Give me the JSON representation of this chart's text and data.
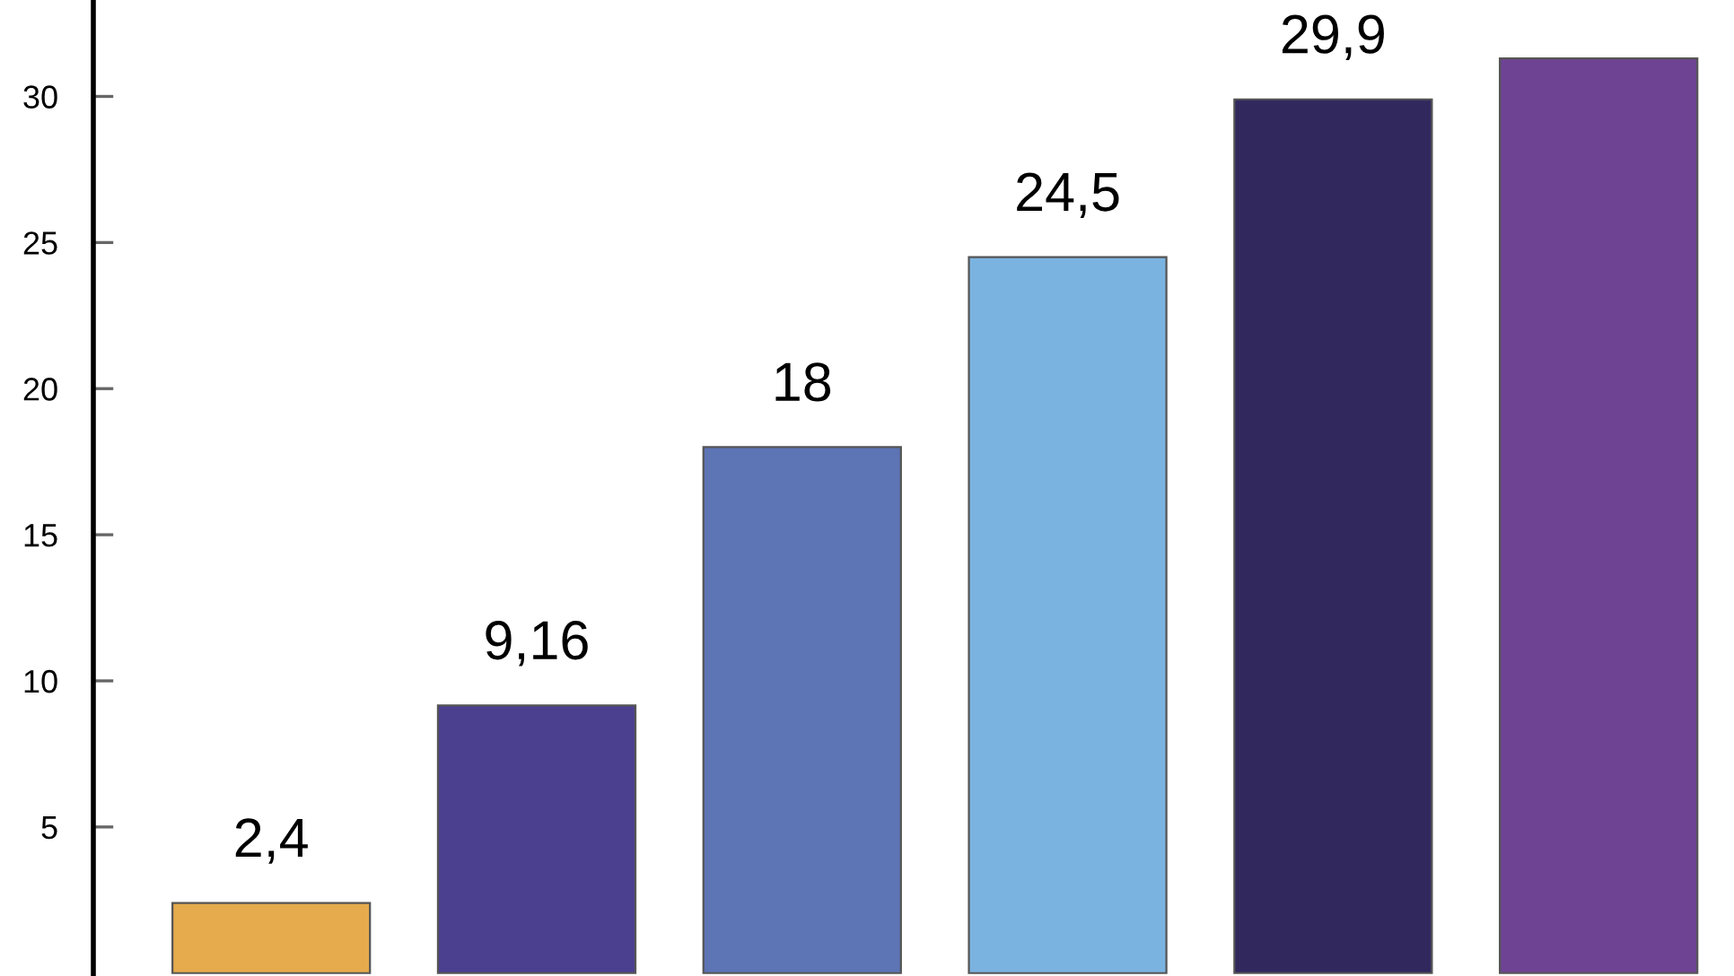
{
  "chart_data": {
    "type": "bar",
    "categories": [
      null,
      null,
      null,
      null,
      null,
      null
    ],
    "values": [
      2.4,
      9.16,
      18,
      24.5,
      29.9,
      31.3
    ],
    "colors": [
      "#e5ab4c",
      "#4b3f8f",
      "#5d74b5",
      "#7bb3e0",
      "#31285e",
      "#6f4393"
    ],
    "value_labels": [
      "2,4",
      "9,16",
      "18",
      "24,5",
      "29,9",
      null
    ],
    "ylim": [
      -0.1,
      33.3
    ],
    "yticks": [
      5,
      10,
      15,
      20,
      25,
      30
    ],
    "grid": false
  }
}
